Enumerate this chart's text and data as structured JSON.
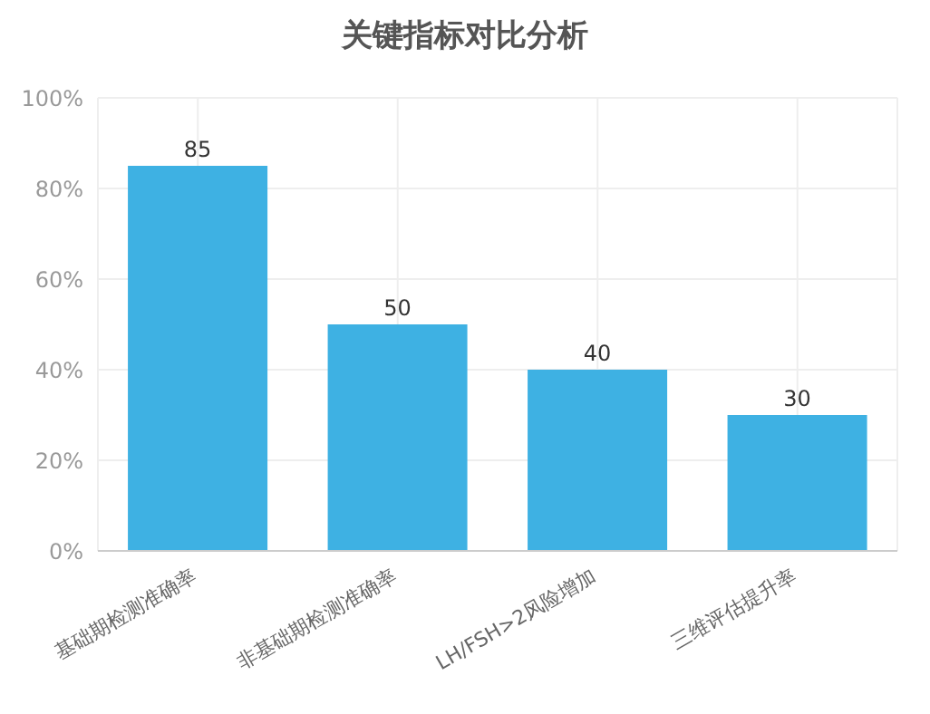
{
  "chart_data": {
    "type": "bar",
    "title": "关键指标对比分析",
    "categories": [
      "基础期检测准确率",
      "非基础期检测准确率",
      "LH/FSH>2风险增加",
      "三维评估提升率"
    ],
    "values": [
      85,
      50,
      40,
      30
    ],
    "color": "#3eb1e3",
    "ylim": [
      0,
      100
    ],
    "yticks": [
      {
        "value": 0,
        "label": "0%"
      },
      {
        "value": 20,
        "label": "20%"
      },
      {
        "value": 40,
        "label": "40%"
      },
      {
        "value": 60,
        "label": "60%"
      },
      {
        "value": 80,
        "label": "80%"
      },
      {
        "value": 100,
        "label": "100%"
      }
    ],
    "grid": true,
    "data_labels": true
  }
}
